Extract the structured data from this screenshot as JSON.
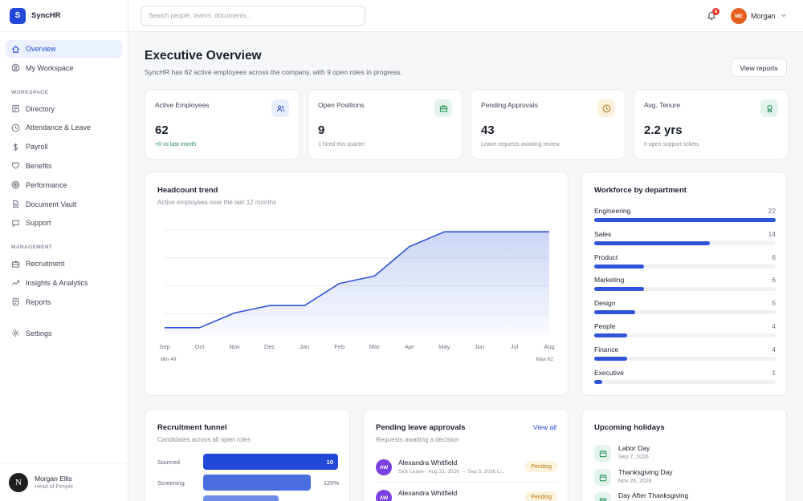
{
  "brand": {
    "logo_letter": "S",
    "name": "SyncHR"
  },
  "sidebar": {
    "items": [
      {
        "label": "Overview",
        "icon": "home-icon",
        "active": true
      },
      {
        "label": "My Workspace",
        "icon": "user-circle-icon"
      }
    ],
    "workspace_heading": "WORKSPACE",
    "workspace_items": [
      {
        "label": "Directory",
        "icon": "list-icon"
      },
      {
        "label": "Attendance & Leave",
        "icon": "clock-icon"
      },
      {
        "label": "Payroll",
        "icon": "dollar-icon"
      },
      {
        "label": "Benefits",
        "icon": "heart-icon"
      },
      {
        "label": "Performance",
        "icon": "target-icon"
      },
      {
        "label": "Document Vault",
        "icon": "document-icon"
      },
      {
        "label": "Support",
        "icon": "chat-icon"
      }
    ],
    "management_heading": "MANAGEMENT",
    "management_items": [
      {
        "label": "Recruitment",
        "icon": "briefcase-icon"
      },
      {
        "label": "Insights & Analytics",
        "icon": "trend-icon"
      },
      {
        "label": "Reports",
        "icon": "report-icon"
      }
    ],
    "settings": {
      "label": "Settings",
      "icon": "gear-icon"
    },
    "user": {
      "initial": "N",
      "name": "Morgan Ellis",
      "role": "Head of People"
    }
  },
  "topbar": {
    "search_placeholder": "Search people, teams, documents…",
    "notifications_count": "8",
    "avatar_initials": "ME",
    "user_name": "Morgan"
  },
  "header": {
    "title": "Executive Overview",
    "subtitle": "SyncHR has 62 active employees across the company, with 9 open roles in progress.",
    "view_reports": "View reports"
  },
  "stats": [
    {
      "label": "Active Employees",
      "value": "62",
      "note": "+0 vs last month",
      "icon": "users-icon",
      "tone": "#e8eefc",
      "ink": "#2f54d9",
      "positive": true
    },
    {
      "label": "Open Positions",
      "value": "9",
      "note": "1 hired this quarter",
      "icon": "briefcase-icon",
      "tone": "#e3f4ec",
      "ink": "#1e8a4e",
      "positive": false
    },
    {
      "label": "Pending Approvals",
      "value": "43",
      "note": "Leave requests awaiting review",
      "icon": "clock-icon",
      "tone": "#fdf1de",
      "ink": "#b67612",
      "positive": false
    },
    {
      "label": "Avg. Tenure",
      "value": "2.2 yrs",
      "note": "6 open support tickets",
      "icon": "badge-icon",
      "tone": "#e3f4ec",
      "ink": "#1e8a4e",
      "positive": false
    }
  ],
  "headcount": {
    "title": "Headcount trend",
    "subtitle": "Active employees over the last 12 months",
    "min_label": "Min 49",
    "max_label": "Max 62"
  },
  "chart_data": {
    "type": "area",
    "categories": [
      "Sep",
      "Oct",
      "Nov",
      "Dec",
      "Jan",
      "Feb",
      "Mar",
      "Apr",
      "May",
      "Jun",
      "Jul",
      "Aug"
    ],
    "values": [
      49,
      49,
      51,
      52,
      52,
      55,
      56,
      60,
      62,
      62,
      62,
      62
    ],
    "ylim": [
      48,
      63
    ],
    "grid": true,
    "color": "#2f54d9"
  },
  "departments": {
    "title": "Workforce by department",
    "max": 22,
    "items": [
      {
        "name": "Engineering",
        "count": 22
      },
      {
        "name": "Sales",
        "count": 14
      },
      {
        "name": "Product",
        "count": 6
      },
      {
        "name": "Marketing",
        "count": 6
      },
      {
        "name": "Design",
        "count": 5
      },
      {
        "name": "People",
        "count": 4
      },
      {
        "name": "Finance",
        "count": 4
      },
      {
        "name": "Executive",
        "count": 1
      }
    ]
  },
  "funnel": {
    "title": "Recruitment funnel",
    "subtitle": "Candidates across all open roles",
    "stages": [
      {
        "label": "Sourced",
        "bar_label": "10",
        "side_label": "",
        "fill": 1.0,
        "color": "#2148d6"
      },
      {
        "label": "Screening",
        "bar_label": "",
        "side_label": "120%",
        "fill": 0.8,
        "color": "#4a6ee0"
      },
      {
        "label": "",
        "bar_label": "",
        "side_label": "",
        "fill": 0.56,
        "color": "#6f8ce6"
      }
    ]
  },
  "leave": {
    "title": "Pending leave approvals",
    "subtitle": "Requests awaiting a decision",
    "view_all": "View all",
    "items": [
      {
        "initials": "AW",
        "name": "Alexandra Whitfield",
        "detail": "Sick Leave · Aug 31, 2026 → Sep 3, 2026 L...",
        "status": "Pending"
      },
      {
        "initials": "AW",
        "name": "Alexandra Whitfield",
        "detail": "",
        "status": "Pending"
      }
    ]
  },
  "holidays": {
    "title": "Upcoming holidays",
    "items": [
      {
        "name": "Labor Day",
        "date": "Sep 7, 2026"
      },
      {
        "name": "Thanksgiving Day",
        "date": "Nov 26, 2026"
      },
      {
        "name": "Day After Thanksgiving",
        "date": ""
      }
    ]
  }
}
